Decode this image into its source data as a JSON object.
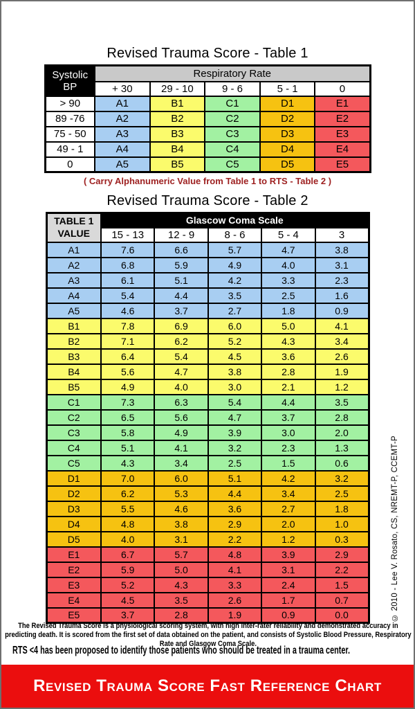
{
  "page": {
    "title1": "Revised Trauma Score - Table 1",
    "title2": "Revised Trauma Score - Table 2",
    "caption": "( Carry Alphanumeric Value from Table 1 to RTS - Table 2 )",
    "copyright": "© 2010 - Lee V. Rosato, CS, NREMT-P, CCEMT-P",
    "footer_paragraph": "The Revised Trauma Score is a physiological scoring system, with high inter-rater reliability and demonstrated accuracy in predicting death. It is scored from the first set of data obtained on the patient, and consists of Systolic Blood Pressure, Respiratory Rate and Glasgow Coma Scale.",
    "footer_note": "RTS <4 has been proposed to identify those patients who should be treated in a trauma center.",
    "banner": "Revised Trauma Score Fast Reference Chart"
  },
  "table1": {
    "row_header_title": "Systolic BP",
    "col_group_title": "Respiratory Rate",
    "col_headers": [
      "+ 30",
      "29 - 10",
      "9 - 6",
      "5 - 1",
      "0"
    ],
    "rows": [
      {
        "label": "> 90",
        "cells": [
          "A1",
          "B1",
          "C1",
          "D1",
          "E1"
        ]
      },
      {
        "label": "89 -76",
        "cells": [
          "A2",
          "B2",
          "C2",
          "D2",
          "E2"
        ]
      },
      {
        "label": "75 - 50",
        "cells": [
          "A3",
          "B3",
          "C3",
          "D3",
          "E3"
        ]
      },
      {
        "label": "49 - 1",
        "cells": [
          "A4",
          "B4",
          "C4",
          "D4",
          "E4"
        ]
      },
      {
        "label": "0",
        "cells": [
          "A5",
          "B5",
          "C5",
          "D5",
          "E5"
        ]
      }
    ]
  },
  "table2": {
    "row_header_title": "TABLE 1 VALUE",
    "col_group_title": "Glascow Coma Scale",
    "col_headers": [
      "15 - 13",
      "12 - 9",
      "8 - 6",
      "5 - 4",
      "3"
    ],
    "rows": [
      {
        "label": "A1",
        "values": [
          "7.6",
          "6.6",
          "5.7",
          "4.7",
          "3.8"
        ]
      },
      {
        "label": "A2",
        "values": [
          "6.8",
          "5.9",
          "4.9",
          "4.0",
          "3.1"
        ]
      },
      {
        "label": "A3",
        "values": [
          "6.1",
          "5.1",
          "4.2",
          "3.3",
          "2.3"
        ]
      },
      {
        "label": "A4",
        "values": [
          "5.4",
          "4.4",
          "3.5",
          "2.5",
          "1.6"
        ]
      },
      {
        "label": "A5",
        "values": [
          "4.6",
          "3.7",
          "2.7",
          "1.8",
          "0.9"
        ]
      },
      {
        "label": "B1",
        "values": [
          "7.8",
          "6.9",
          "6.0",
          "5.0",
          "4.1"
        ]
      },
      {
        "label": "B2",
        "values": [
          "7.1",
          "6.2",
          "5.2",
          "4.3",
          "3.4"
        ]
      },
      {
        "label": "B3",
        "values": [
          "6.4",
          "5.4",
          "4.5",
          "3.6",
          "2.6"
        ]
      },
      {
        "label": "B4",
        "values": [
          "5.6",
          "4.7",
          "3.8",
          "2.8",
          "1.9"
        ]
      },
      {
        "label": "B5",
        "values": [
          "4.9",
          "4.0",
          "3.0",
          "2.1",
          "1.2"
        ]
      },
      {
        "label": "C1",
        "values": [
          "7.3",
          "6.3",
          "5.4",
          "4.4",
          "3.5"
        ]
      },
      {
        "label": "C2",
        "values": [
          "6.5",
          "5.6",
          "4.7",
          "3.7",
          "2.8"
        ]
      },
      {
        "label": "C3",
        "values": [
          "5.8",
          "4.9",
          "3.9",
          "3.0",
          "2.0"
        ]
      },
      {
        "label": "C4",
        "values": [
          "5.1",
          "4.1",
          "3.2",
          "2.3",
          "1.3"
        ]
      },
      {
        "label": "C5",
        "values": [
          "4.3",
          "3.4",
          "2.5",
          "1.5",
          "0.6"
        ]
      },
      {
        "label": "D1",
        "values": [
          "7.0",
          "6.0",
          "5.1",
          "4.2",
          "3.2"
        ]
      },
      {
        "label": "D2",
        "values": [
          "6.2",
          "5.3",
          "4.4",
          "3.4",
          "2.5"
        ]
      },
      {
        "label": "D3",
        "values": [
          "5.5",
          "4.6",
          "3.6",
          "2.7",
          "1.8"
        ]
      },
      {
        "label": "D4",
        "values": [
          "4.8",
          "3.8",
          "2.9",
          "2.0",
          "1.0"
        ]
      },
      {
        "label": "D5",
        "values": [
          "4.0",
          "3.1",
          "2.2",
          "1.2",
          "0.3"
        ]
      },
      {
        "label": "E1",
        "values": [
          "6.7",
          "5.7",
          "4.8",
          "3.9",
          "2.9"
        ]
      },
      {
        "label": "E2",
        "values": [
          "5.9",
          "5.0",
          "4.1",
          "3.1",
          "2.2"
        ]
      },
      {
        "label": "E3",
        "values": [
          "5.2",
          "4.3",
          "3.3",
          "2.4",
          "1.5"
        ]
      },
      {
        "label": "E4",
        "values": [
          "4.5",
          "3.5",
          "2.6",
          "1.7",
          "0.7"
        ]
      },
      {
        "label": "E5",
        "values": [
          "3.7",
          "2.8",
          "1.9",
          "0.9",
          "0.0"
        ]
      }
    ]
  },
  "colors": {
    "group_a": "#A8CEF2",
    "group_b": "#FBFB6C",
    "group_c": "#A2F1A2",
    "group_d": "#F6C211",
    "group_e": "#F4585C",
    "banner": "#EB0E0E",
    "caption": "#9E2121",
    "t1_header_bg": "#C9C9C9",
    "t2_header_bg": "#D9D9D9",
    "page_border": "#6F6F6F"
  }
}
